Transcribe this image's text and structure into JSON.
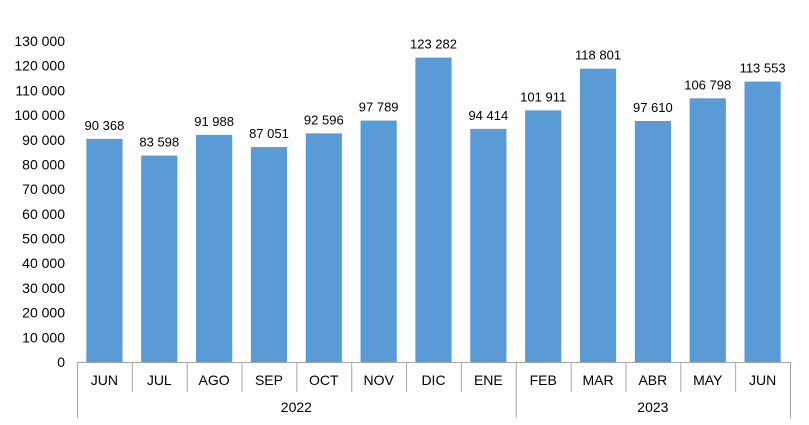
{
  "chart_data": {
    "type": "bar",
    "categories": [
      "JUN",
      "JUL",
      "AGO",
      "SEP",
      "OCT",
      "NOV",
      "DIC",
      "ENE",
      "FEB",
      "MAR",
      "ABR",
      "MAY",
      "JUN"
    ],
    "values": [
      90368,
      83598,
      91988,
      87051,
      92596,
      97789,
      123282,
      94414,
      101911,
      118801,
      97610,
      106798,
      113553
    ],
    "data_labels": [
      "90 368",
      "83 598",
      "91 988",
      "87 051",
      "92 596",
      "97 789",
      "123 282",
      "94 414",
      "101 911",
      "118 801",
      "97 610",
      "106 798",
      "113 553"
    ],
    "groups": [
      {
        "label": "2022",
        "count": 8
      },
      {
        "label": "2023",
        "count": 5
      }
    ],
    "y_ticks": [
      0,
      10000,
      20000,
      30000,
      40000,
      50000,
      60000,
      70000,
      80000,
      90000,
      100000,
      110000,
      120000,
      130000
    ],
    "y_tick_labels": [
      "0",
      "10 000",
      "20 000",
      "30 000",
      "40 000",
      "50 000",
      "60 000",
      "70 000",
      "80 000",
      "90 000",
      "100 000",
      "110 000",
      "120 000",
      "130 000"
    ],
    "ylim": [
      0,
      130000
    ],
    "grid": false,
    "legend": false,
    "bar_color": "#5B9BD5",
    "axis_color": "#A6A6A6"
  }
}
